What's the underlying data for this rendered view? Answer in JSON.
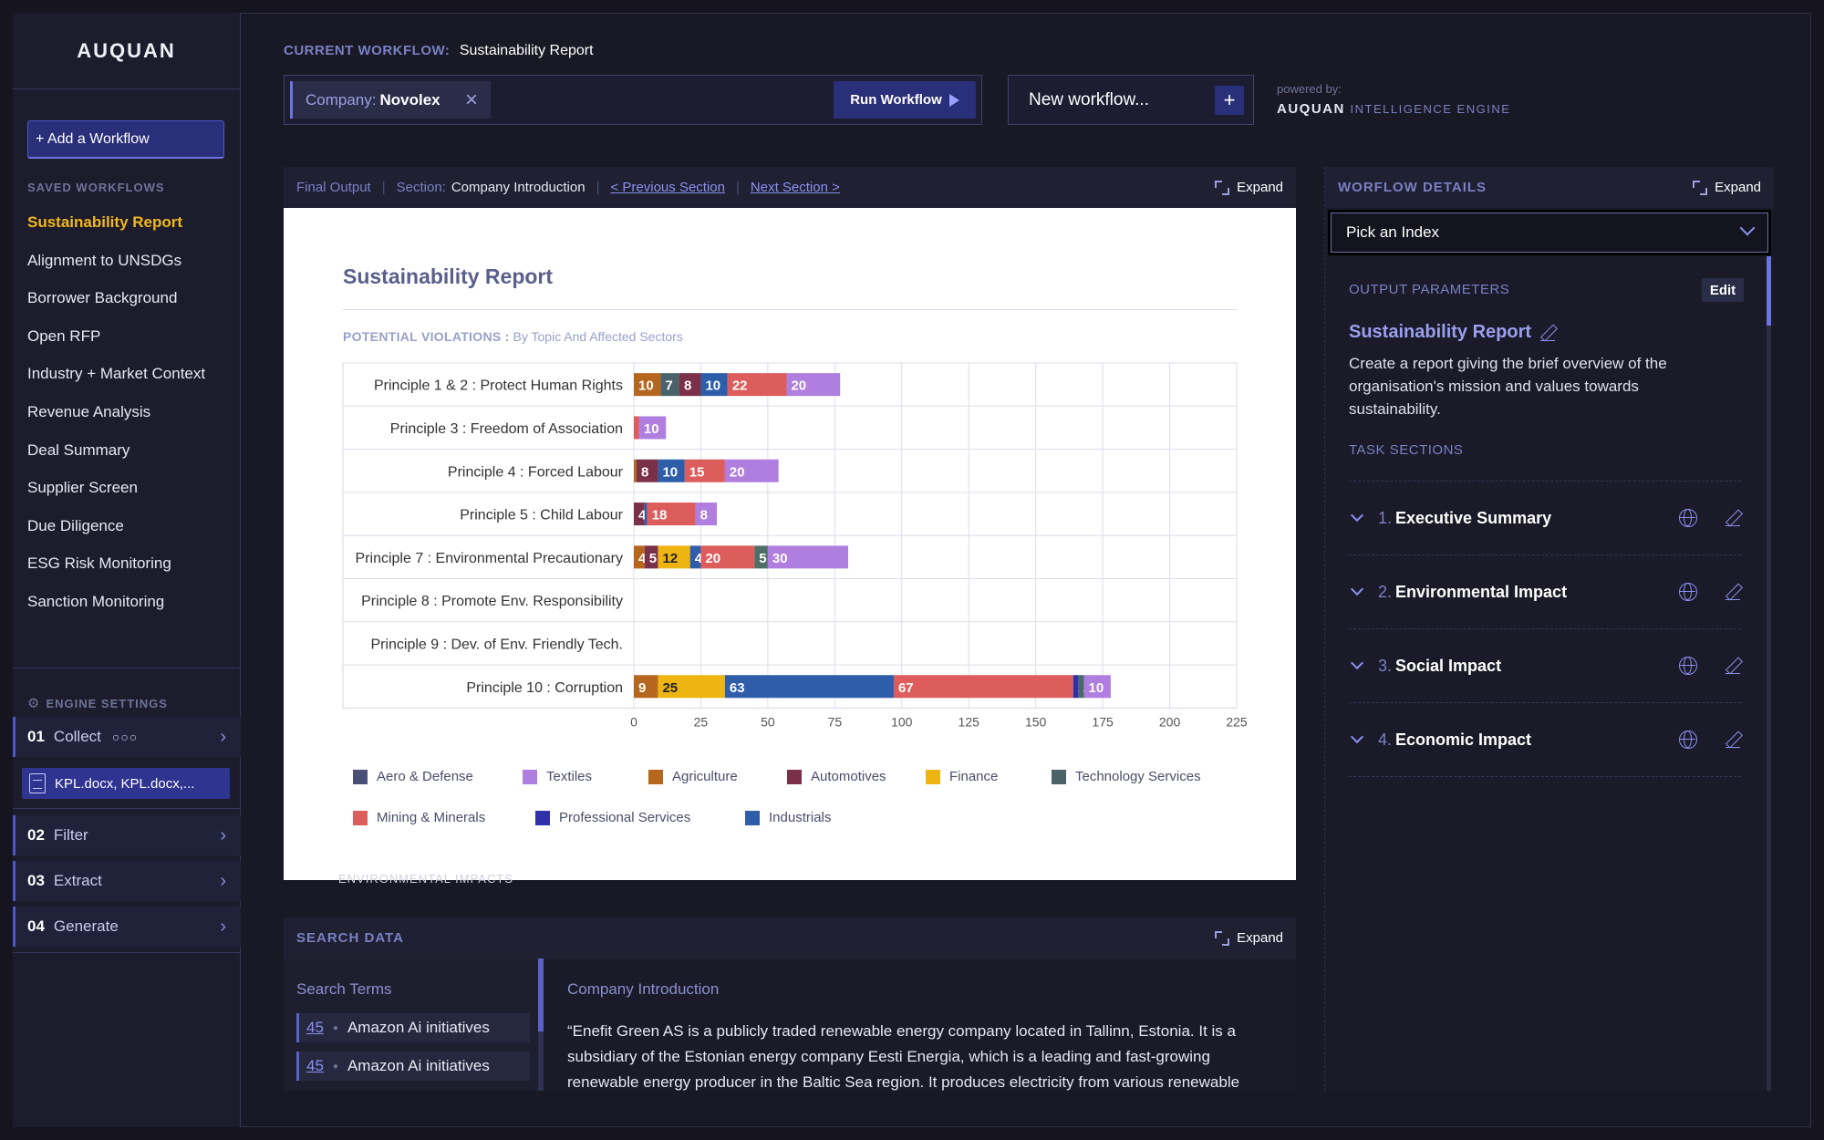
{
  "app": {
    "logo": "AUQUAN"
  },
  "sidebar": {
    "add_button": "+ Add a Workflow",
    "saved_label": "SAVED WORKFLOWS",
    "saved": [
      "Sustainability Report",
      "Alignment to UNSDGs",
      "Borrower Background",
      "Open RFP",
      "Industry + Market Context",
      "Revenue Analysis",
      "Deal Summary",
      "Supplier Screen",
      "Due Diligence",
      "ESG Risk Monitoring",
      "Sanction Monitoring"
    ],
    "engine_label": "ENGINE SETTINGS",
    "steps": [
      {
        "num": "01",
        "label": "Collect",
        "extra": "○○○"
      },
      {
        "num": "02",
        "label": "Filter"
      },
      {
        "num": "03",
        "label": "Extract"
      },
      {
        "num": "04",
        "label": "Generate"
      }
    ],
    "file_chip": "KPL.docx, KPL.docx,..."
  },
  "header": {
    "current_label": "CURRENT WORKFLOW:",
    "current_value": "Sustainability Report",
    "company_key": "Company:",
    "company_value": "Novolex",
    "run_button": "Run Workflow",
    "new_workflow_placeholder": "New workflow...",
    "powered_by": "powered by:",
    "engine_brand": "AUQUAN",
    "engine_suffix": "INTELLIGENCE ENGINE"
  },
  "final_output": {
    "label": "Final Output",
    "section_label": "Section:",
    "section_value": "Company Introduction",
    "prev": "< Previous Section",
    "next": "Next Section >",
    "expand": "Expand",
    "doc_title": "Sustainability Report",
    "subtitle_a": "POTENTIAL VIOLATIONS :",
    "subtitle_b": "By Topic And Affected Sectors",
    "next_heading_fragment": "ENVIRONMENTAL IMPACTS"
  },
  "chart_data": {
    "type": "bar",
    "orientation": "horizontal",
    "stacked": true,
    "categories": [
      "Principle 1 & 2 : Protect Human Rights",
      "Principle 3 : Freedom of Association",
      "Principle 4 : Forced Labour",
      "Principle 5 : Child Labour",
      "Principle 7 : Environmental Precautionary",
      "Principle 8 : Promote Env. Responsibility",
      "Principle 9 : Dev. of Env. Friendly Tech.",
      "Principle 10 : Corruption"
    ],
    "xlim": [
      0,
      225
    ],
    "xticks": [
      0,
      25,
      50,
      75,
      100,
      125,
      150,
      175,
      200,
      225
    ],
    "grid": true,
    "legend_position": "bottom",
    "series": [
      {
        "name": "Aero & Defense",
        "color": "#4a4f78",
        "values": [
          0,
          0,
          0,
          0,
          0,
          0,
          0,
          0
        ]
      },
      {
        "name": "Agriculture",
        "color": "#b5671f",
        "values": [
          10,
          0,
          1,
          0,
          4,
          0,
          0,
          9
        ]
      },
      {
        "name": "Technology Services",
        "color": "#4a6268",
        "values": [
          7,
          0,
          0,
          0,
          0,
          0,
          0,
          0
        ]
      },
      {
        "name": "Automotives",
        "color": "#7a3048",
        "values": [
          8,
          0,
          8,
          4,
          5,
          0,
          0,
          0
        ]
      },
      {
        "name": "Finance",
        "color": "#edb412",
        "values": [
          0,
          0,
          0,
          0,
          12,
          0,
          0,
          25
        ]
      },
      {
        "name": "Industrials",
        "color": "#2e5eaa",
        "values": [
          10,
          0,
          10,
          1,
          4,
          0,
          0,
          63
        ]
      },
      {
        "name": "Mining & Minerals",
        "color": "#dd5c5c",
        "values": [
          22,
          2,
          15,
          18,
          20,
          0,
          0,
          67
        ]
      },
      {
        "name": "Technology Services (2)",
        "color": "#4f6e66",
        "values": [
          0,
          0,
          0,
          0,
          5,
          0,
          0,
          0
        ]
      },
      {
        "name": "Professional Services",
        "color": "#3030a8",
        "values": [
          0,
          0,
          0,
          0,
          0,
          0,
          0,
          2
        ]
      },
      {
        "name": "Technology Services (3)",
        "color": "#4a6a6a",
        "values": [
          0,
          0,
          0,
          0,
          0,
          0,
          0,
          2
        ]
      },
      {
        "name": "Textiles",
        "color": "#b07ede",
        "values": [
          20,
          10,
          20,
          8,
          30,
          0,
          0,
          10
        ]
      }
    ],
    "legend": [
      {
        "name": "Aero & Defense",
        "color": "#4a4f78"
      },
      {
        "name": "Textiles",
        "color": "#b07ede"
      },
      {
        "name": "Agriculture",
        "color": "#b5671f"
      },
      {
        "name": "Automotives",
        "color": "#7a3048"
      },
      {
        "name": "Finance",
        "color": "#edb412"
      },
      {
        "name": "Technology Services",
        "color": "#4a6268"
      },
      {
        "name": "Mining & Minerals",
        "color": "#dd5c5c"
      },
      {
        "name": "Professional Services",
        "color": "#3030a8"
      },
      {
        "name": "Industrials",
        "color": "#2e5eaa"
      }
    ]
  },
  "search_data": {
    "label": "SEARCH DATA",
    "expand": "Expand",
    "terms_title": "Search Terms",
    "terms": [
      {
        "count": "45",
        "text": "Amazon Ai initiatives"
      },
      {
        "count": "45",
        "text": "Amazon Ai initiatives"
      }
    ],
    "content_title": "Company Introduction",
    "content_text": "“Enefit Green AS is a publicly traded renewable energy company located in Tallinn, Estonia. It is a subsidiary of the Estonian energy company Eesti Energia, which is a leading and fast-growing renewable energy producer in the Baltic Sea region. It produces electricity from various renewable"
  },
  "workflow_details": {
    "label": "WORFLOW DETAILS",
    "expand": "Expand",
    "pick_index": "Pick an Index",
    "output_params_label": "OUTPUT PARAMETERS",
    "edit": "Edit",
    "title": "Sustainability Report",
    "description": "Create a report giving the brief overview of the organisation's mission and values towards sustainability.",
    "task_sections_label": "TASK SECTIONS",
    "sections": [
      {
        "num": "1.",
        "title": "Executive Summary"
      },
      {
        "num": "2.",
        "title": "Environmental Impact"
      },
      {
        "num": "3.",
        "title": "Social Impact"
      },
      {
        "num": "4.",
        "title": "Economic Impact"
      }
    ]
  }
}
